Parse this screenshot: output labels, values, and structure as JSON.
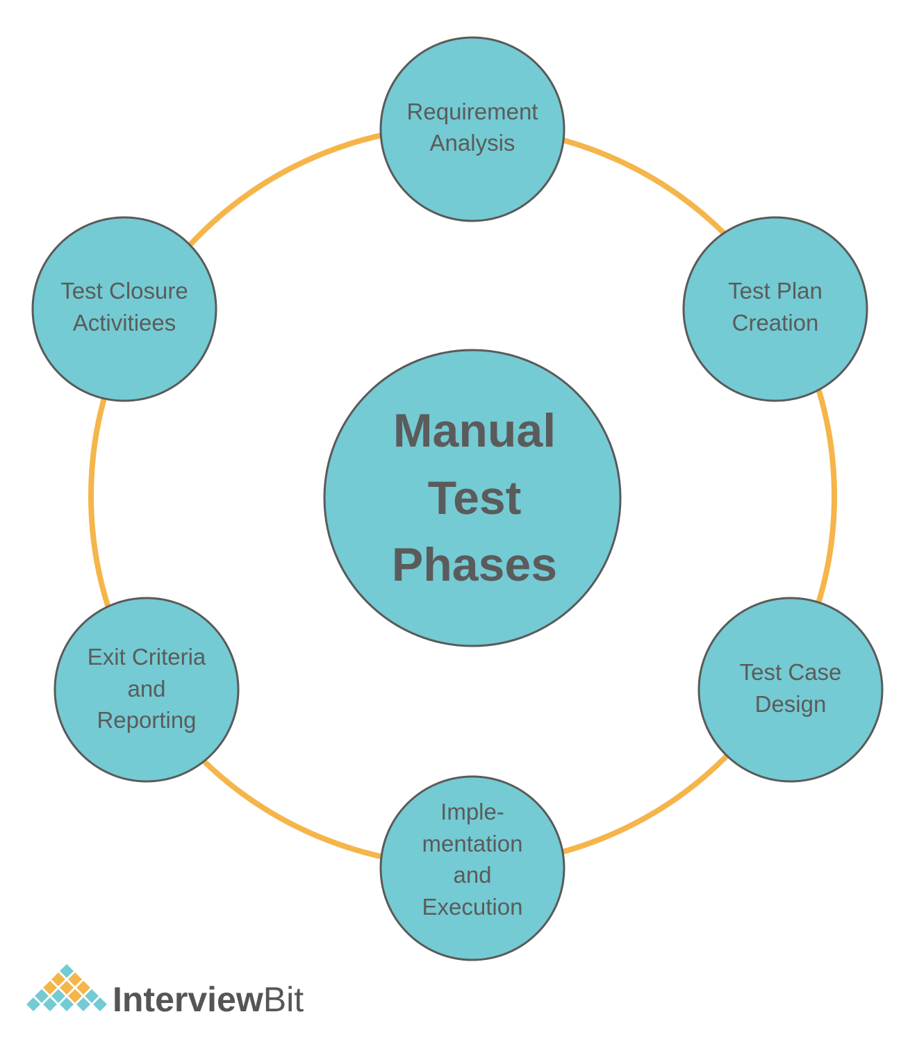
{
  "diagram": {
    "center": {
      "lines": [
        "Manual",
        "Test",
        "Phases"
      ]
    },
    "phases": [
      {
        "id": "requirement-analysis",
        "lines": [
          "Requirement",
          "Analysis"
        ]
      },
      {
        "id": "test-plan-creation",
        "lines": [
          "Test Plan",
          "Creation"
        ]
      },
      {
        "id": "test-case-design",
        "lines": [
          "Test Case",
          "Design"
        ]
      },
      {
        "id": "implementation-and-execution",
        "lines": [
          "Imple-",
          "mentation",
          "and",
          "Execution"
        ]
      },
      {
        "id": "exit-criteria-and-reporting",
        "lines": [
          "Exit Criteria",
          "and",
          "Reporting"
        ]
      },
      {
        "id": "test-closure-activities",
        "lines": [
          "Test Closure",
          "Activitiees"
        ]
      }
    ]
  },
  "logo": {
    "text_bold": "Interview",
    "text_regular": "Bit"
  },
  "colors": {
    "node_fill": "#74cbd3",
    "node_stroke": "#5a5a5a",
    "ring": "#f5b54a",
    "text": "#5b5b5b",
    "logo_orange": "#f5b54a",
    "logo_teal": "#74cbd3"
  }
}
